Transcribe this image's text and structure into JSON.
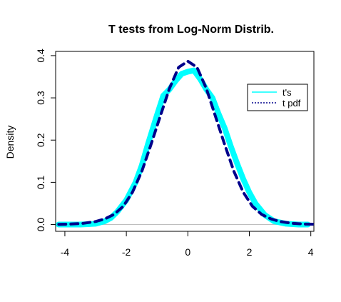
{
  "chart_data": {
    "type": "line",
    "title": "T tests from Log-Norm Distrib.",
    "xlabel": "",
    "ylabel": "Density",
    "xlim": [
      -4.3,
      4.1
    ],
    "ylim": [
      -0.016,
      0.41
    ],
    "xticks": [
      -4,
      -2,
      0,
      2,
      4
    ],
    "yticks": [
      0.0,
      0.1,
      0.2,
      0.3,
      0.4
    ],
    "xtick_labels": [
      "-4",
      "-2",
      "0",
      "2",
      "4"
    ],
    "ytick_labels": [
      "0.0",
      "0.1",
      "0.2",
      "0.3",
      "0.4"
    ],
    "grid": false,
    "legend": {
      "position": "top-right"
    },
    "series": [
      {
        "name": "t's",
        "color": "#00ffff",
        "style": "solid",
        "x": [
          -4.2,
          -3.5,
          -3.0,
          -2.7,
          -2.5,
          -2.3,
          -2.0,
          -1.7,
          -1.5,
          -1.3,
          -1.0,
          -0.8,
          -0.6,
          -0.4,
          -0.2,
          0.0,
          0.2,
          0.4,
          0.6,
          0.8,
          1.0,
          1.2,
          1.4,
          1.6,
          1.8,
          2.0,
          2.2,
          2.5,
          2.8,
          3.2,
          3.6,
          3.9
        ],
        "y": [
          0.0,
          0.0,
          0.002,
          0.008,
          0.016,
          0.03,
          0.058,
          0.1,
          0.14,
          0.19,
          0.26,
          0.305,
          0.32,
          0.34,
          0.357,
          0.362,
          0.365,
          0.345,
          0.32,
          0.3,
          0.262,
          0.228,
          0.185,
          0.145,
          0.108,
          0.076,
          0.05,
          0.023,
          0.008,
          0.002,
          0.0,
          0.0
        ]
      },
      {
        "name": "t pdf",
        "color": "#00008b",
        "style": "dashed",
        "x": [
          -4.2,
          -3.8,
          -3.4,
          -3.0,
          -2.7,
          -2.4,
          -2.1,
          -1.8,
          -1.5,
          -1.2,
          -0.9,
          -0.6,
          -0.3,
          0.0,
          0.3,
          0.6,
          0.9,
          1.2,
          1.5,
          1.8,
          2.1,
          2.4,
          2.7,
          3.0,
          3.4,
          3.8,
          4.2
        ],
        "y": [
          0.0006,
          0.0012,
          0.0029,
          0.0071,
          0.0134,
          0.0241,
          0.0434,
          0.0766,
          0.1255,
          0.1891,
          0.2558,
          0.3222,
          0.3723,
          0.3867,
          0.3723,
          0.3222,
          0.2558,
          0.1891,
          0.1255,
          0.0766,
          0.0434,
          0.0241,
          0.0134,
          0.0071,
          0.0029,
          0.0012,
          0.0006
        ]
      }
    ]
  }
}
